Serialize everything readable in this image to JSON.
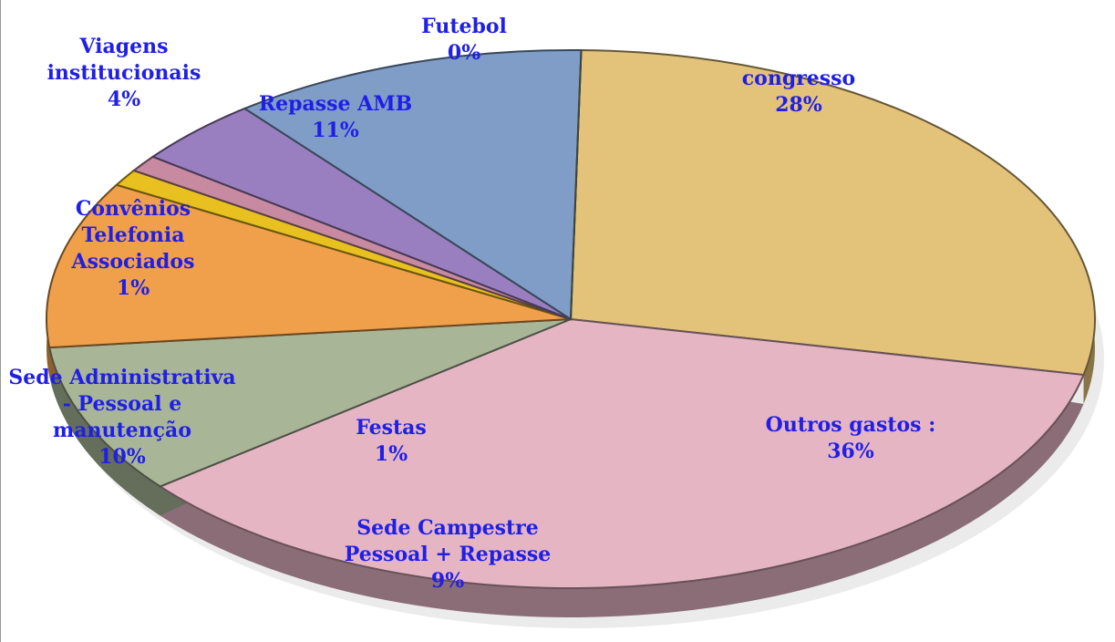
{
  "chart_data": {
    "type": "pie",
    "categories": [
      "congresso",
      "Outros gastos :",
      "Sede Campestre Pessoal + Repasse",
      "Sede Administrativa - Pessoal e manutenção",
      "Festas",
      "Convênios Telefonia Associados",
      "Viagens institucionais",
      "Repasse AMB",
      "Futebol"
    ],
    "values": [
      28,
      36,
      9,
      10,
      1,
      1,
      4,
      11,
      0
    ],
    "value_labels": [
      "28%",
      "36%",
      "9%",
      "10%",
      "1%",
      "1%",
      "4%",
      "11%",
      "0%"
    ],
    "colors": [
      "#e3c27a",
      "#e6b5c4",
      "#a9b597",
      "#f0a04a",
      "#e8c020",
      "#c78aa0",
      "#9a7fc0",
      "#7f9dc7",
      "#8a9a80"
    ]
  }
}
